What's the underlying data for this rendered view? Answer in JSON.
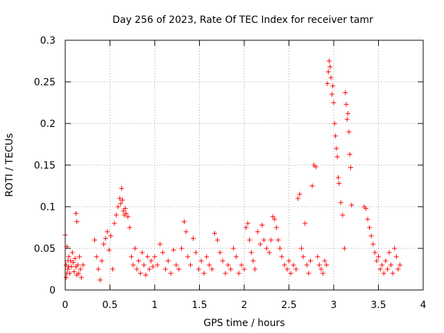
{
  "chart_data": {
    "type": "scatter",
    "title": "Day 256 of 2023, Rate Of TEC Index for receiver tamr",
    "xlabel": "GPS time / hours",
    "ylabel": "ROTI / TECUs",
    "xlim": [
      0,
      4
    ],
    "ylim": [
      0,
      0.3
    ],
    "xticks": [
      "0",
      "0.5",
      "1",
      "1.5",
      "2",
      "2.5",
      "3",
      "3.5",
      "4"
    ],
    "yticks": [
      "0",
      "0.05",
      "0.1",
      "0.15",
      "0.2",
      "0.25",
      "0.3"
    ],
    "grid": true,
    "marker": "+",
    "color": "#ff0000",
    "series": [
      {
        "name": "ROTI",
        "x": [
          0.0,
          0.01,
          0.02,
          0.03,
          0.04,
          0.05,
          0.06,
          0.07,
          0.08,
          0.09,
          0.1,
          0.11,
          0.12,
          0.13,
          0.14,
          0.15,
          0.16,
          0.17,
          0.18,
          0.2,
          0.12,
          0.13,
          0.01,
          0.02,
          0.03,
          0.04,
          0.33,
          0.35,
          0.37,
          0.39,
          0.41,
          0.43,
          0.45,
          0.47,
          0.49,
          0.51,
          0.53,
          0.55,
          0.57,
          0.59,
          0.61,
          0.62,
          0.63,
          0.64,
          0.65,
          0.66,
          0.67,
          0.68,
          0.7,
          0.72,
          0.74,
          0.76,
          0.78,
          0.8,
          0.82,
          0.84,
          0.86,
          0.88,
          0.9,
          0.92,
          0.94,
          0.96,
          0.98,
          1.0,
          1.03,
          1.06,
          1.09,
          1.12,
          1.15,
          1.18,
          1.21,
          1.24,
          1.27,
          1.3,
          1.33,
          1.35,
          1.37,
          1.4,
          1.43,
          1.46,
          1.49,
          1.52,
          1.55,
          1.58,
          1.61,
          1.64,
          1.67,
          1.7,
          1.73,
          1.76,
          1.79,
          1.82,
          1.85,
          1.88,
          1.91,
          1.94,
          1.97,
          2.0,
          2.02,
          2.04,
          2.06,
          2.08,
          2.1,
          2.12,
          2.15,
          2.18,
          2.2,
          2.22,
          2.25,
          2.28,
          2.3,
          2.32,
          2.34,
          2.36,
          2.38,
          2.4,
          2.42,
          2.45,
          2.48,
          2.5,
          2.52,
          2.55,
          2.58,
          2.6,
          2.62,
          2.64,
          2.66,
          2.68,
          2.7,
          2.72,
          2.74,
          2.76,
          2.78,
          2.8,
          2.82,
          2.84,
          2.86,
          2.88,
          2.9,
          2.92,
          2.93,
          2.94,
          2.95,
          2.96,
          2.97,
          2.98,
          2.99,
          3.0,
          3.01,
          3.02,
          3.03,
          3.04,
          3.05,
          3.06,
          3.08,
          3.1,
          3.12,
          3.13,
          3.14,
          3.15,
          3.16,
          3.17,
          3.18,
          3.19,
          3.2,
          3.34,
          3.36,
          3.38,
          3.4,
          3.42,
          3.44,
          3.46,
          3.48,
          3.5,
          3.52,
          3.54,
          3.56,
          3.58,
          3.6,
          3.62,
          3.64,
          3.66,
          3.68,
          3.7,
          3.72,
          3.74
        ],
        "y": [
          0.066,
          0.03,
          0.052,
          0.025,
          0.04,
          0.02,
          0.035,
          0.028,
          0.045,
          0.033,
          0.022,
          0.038,
          0.092,
          0.082,
          0.03,
          0.02,
          0.04,
          0.025,
          0.015,
          0.03,
          0.028,
          0.018,
          0.015,
          0.02,
          0.035,
          0.028,
          0.06,
          0.04,
          0.025,
          0.012,
          0.035,
          0.055,
          0.062,
          0.07,
          0.048,
          0.065,
          0.025,
          0.08,
          0.09,
          0.1,
          0.11,
          0.104,
          0.122,
          0.108,
          0.095,
          0.09,
          0.098,
          0.092,
          0.088,
          0.075,
          0.04,
          0.03,
          0.05,
          0.025,
          0.035,
          0.02,
          0.045,
          0.03,
          0.018,
          0.04,
          0.025,
          0.035,
          0.028,
          0.04,
          0.03,
          0.055,
          0.045,
          0.025,
          0.035,
          0.02,
          0.048,
          0.03,
          0.025,
          0.05,
          0.082,
          0.07,
          0.04,
          0.03,
          0.062,
          0.045,
          0.025,
          0.035,
          0.02,
          0.04,
          0.03,
          0.025,
          0.068,
          0.06,
          0.045,
          0.035,
          0.02,
          0.03,
          0.025,
          0.05,
          0.04,
          0.02,
          0.03,
          0.025,
          0.075,
          0.08,
          0.06,
          0.045,
          0.035,
          0.025,
          0.07,
          0.055,
          0.078,
          0.06,
          0.05,
          0.045,
          0.06,
          0.088,
          0.085,
          0.075,
          0.06,
          0.05,
          0.04,
          0.03,
          0.025,
          0.035,
          0.02,
          0.03,
          0.025,
          0.11,
          0.115,
          0.05,
          0.04,
          0.08,
          0.03,
          0.02,
          0.035,
          0.125,
          0.15,
          0.148,
          0.04,
          0.03,
          0.025,
          0.02,
          0.035,
          0.03,
          0.248,
          0.262,
          0.275,
          0.268,
          0.255,
          0.235,
          0.245,
          0.225,
          0.2,
          0.185,
          0.17,
          0.16,
          0.135,
          0.128,
          0.105,
          0.09,
          0.05,
          0.237,
          0.223,
          0.205,
          0.212,
          0.19,
          0.163,
          0.147,
          0.102,
          0.1,
          0.098,
          0.085,
          0.075,
          0.065,
          0.055,
          0.045,
          0.035,
          0.04,
          0.025,
          0.03,
          0.02,
          0.035,
          0.025,
          0.045,
          0.03,
          0.02,
          0.05,
          0.04,
          0.025,
          0.03
        ]
      }
    ]
  }
}
